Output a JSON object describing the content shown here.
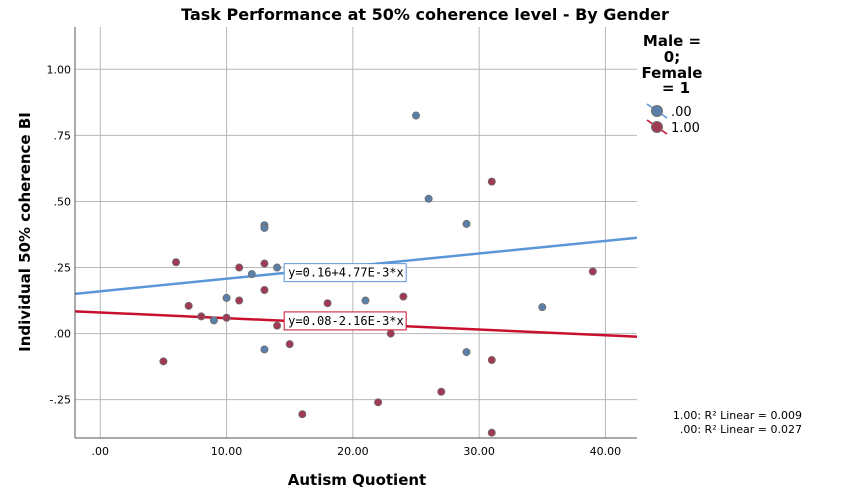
{
  "chart_data": {
    "type": "scatter",
    "title": "Task Performance at 50% coherence level - By Gender",
    "xlabel": "Autism Quotient",
    "ylabel": "Individual 50% coherence BI",
    "xlim": [
      -2,
      42.5
    ],
    "ylim": [
      -0.395,
      1.16
    ],
    "x_ticks": [
      0,
      10,
      20,
      30,
      40
    ],
    "x_tick_labels": [
      ".00",
      "10.00",
      "20.00",
      "30.00",
      "40.00"
    ],
    "y_ticks": [
      -0.25,
      0,
      0.25,
      0.5,
      0.75,
      1.0
    ],
    "y_tick_labels": [
      "-.25",
      ".00",
      ".25",
      ".50",
      ".75",
      "1.00"
    ],
    "grid": true,
    "legend": {
      "title": "Male = 0; Female = 1",
      "title_lines": [
        "Male =",
        "0;",
        "Female",
        "= 1"
      ],
      "placement": "right",
      "entries": [
        ".00",
        "1.00"
      ]
    },
    "series": [
      {
        "name": ".00",
        "color": "#5a7fa8",
        "line_color": "#5b96d6",
        "fit": {
          "intercept": 0.16,
          "slope": 0.00477,
          "label": "y=0.16+4.77E-3*x"
        },
        "r2_label": ".00: R² Linear = 0.027",
        "points": [
          [
            9,
            0.05
          ],
          [
            10,
            0.135
          ],
          [
            12,
            0.225
          ],
          [
            13,
            0.41
          ],
          [
            13,
            0.4
          ],
          [
            13,
            -0.06
          ],
          [
            14,
            0.25
          ],
          [
            21,
            0.125
          ],
          [
            25,
            0.825
          ],
          [
            26,
            0.51
          ],
          [
            29,
            0.415
          ],
          [
            29,
            -0.07
          ],
          [
            35,
            0.1
          ]
        ]
      },
      {
        "name": "1.00",
        "color": "#a03a54",
        "line_color": "#c8102e",
        "fit": {
          "intercept": 0.08,
          "slope": -0.00216,
          "label": "y=0.08-2.16E-3*x"
        },
        "r2_label": "1.00: R² Linear = 0.009",
        "points": [
          [
            5,
            -0.105
          ],
          [
            6,
            0.27
          ],
          [
            7,
            0.105
          ],
          [
            8,
            0.065
          ],
          [
            10,
            0.06
          ],
          [
            11,
            0.25
          ],
          [
            11,
            0.125
          ],
          [
            13,
            0.265
          ],
          [
            13,
            0.165
          ],
          [
            14,
            0.03
          ],
          [
            15,
            -0.04
          ],
          [
            16,
            -0.305
          ],
          [
            18,
            0.115
          ],
          [
            22,
            -0.26
          ],
          [
            23,
            0.0
          ],
          [
            24,
            0.14
          ],
          [
            27,
            -0.22
          ],
          [
            31,
            0.575
          ],
          [
            31,
            -0.1
          ],
          [
            31,
            -0.375
          ],
          [
            39,
            0.235
          ]
        ]
      }
    ]
  }
}
